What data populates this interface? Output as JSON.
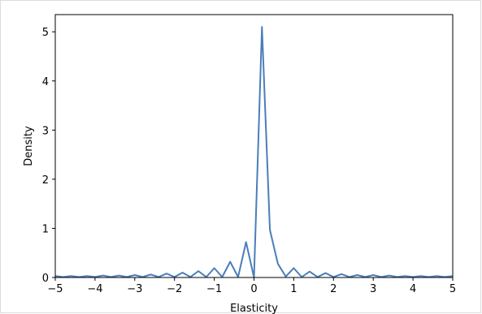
{
  "chart_data": {
    "type": "line",
    "title": "",
    "xlabel": "Elasticity",
    "ylabel": "Density",
    "xlim": [
      -5,
      5
    ],
    "ylim": [
      0,
      5.35
    ],
    "xticks": [
      -5,
      -4,
      -3,
      -2,
      -1,
      0,
      1,
      2,
      3,
      4,
      5
    ],
    "xtick_labels": [
      "−5",
      "−4",
      "−3",
      "−2",
      "−1",
      "0",
      "1",
      "2",
      "3",
      "4",
      "5"
    ],
    "yticks": [
      0,
      1,
      2,
      3,
      4,
      5
    ],
    "ytick_labels": [
      "0",
      "1",
      "2",
      "3",
      "4",
      "5"
    ],
    "grid": false,
    "color": "#4a7ebb",
    "series": [
      {
        "x": [
          -5.0,
          -4.8,
          -4.6,
          -4.4,
          -4.2,
          -4.0,
          -3.8,
          -3.6,
          -3.4,
          -3.2,
          -3.0,
          -2.8,
          -2.6,
          -2.4,
          -2.2,
          -2.0,
          -1.8,
          -1.6,
          -1.4,
          -1.2,
          -1.0,
          -0.8,
          -0.6,
          -0.4,
          -0.2,
          0.0,
          0.2,
          0.4,
          0.6,
          0.8,
          1.0,
          1.2,
          1.4,
          1.6,
          1.8,
          2.0,
          2.2,
          2.4,
          2.6,
          2.8,
          3.0,
          3.2,
          3.4,
          3.6,
          3.8,
          4.0,
          4.2,
          4.4,
          4.6,
          4.8,
          5.0
        ],
        "y": [
          0.03,
          0.01,
          0.03,
          0.01,
          0.03,
          0.01,
          0.04,
          0.01,
          0.04,
          0.01,
          0.05,
          0.01,
          0.06,
          0.01,
          0.08,
          0.01,
          0.1,
          0.01,
          0.13,
          0.01,
          0.19,
          0.01,
          0.32,
          0.01,
          0.72,
          0.0,
          5.1,
          0.97,
          0.28,
          0.02,
          0.19,
          0.01,
          0.12,
          0.01,
          0.09,
          0.01,
          0.07,
          0.01,
          0.05,
          0.01,
          0.05,
          0.01,
          0.04,
          0.01,
          0.03,
          0.01,
          0.03,
          0.01,
          0.03,
          0.01,
          0.03
        ]
      }
    ]
  }
}
